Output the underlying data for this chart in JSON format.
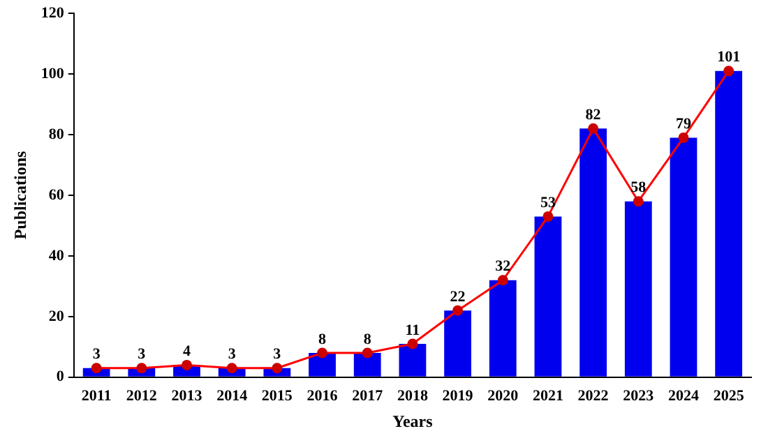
{
  "chart_data": {
    "type": "bar",
    "xlabel": "Years",
    "ylabel": "Publications",
    "categories": [
      "2011",
      "2012",
      "2013",
      "2014",
      "2015",
      "2016",
      "2017",
      "2018",
      "2019",
      "2020",
      "2021",
      "2022",
      "2023",
      "2024",
      "2025"
    ],
    "series": [
      {
        "color": "#0000ee",
        "values": [
          3,
          3,
          4,
          3,
          3,
          8,
          8,
          11,
          22,
          32,
          53,
          82,
          58,
          79,
          101
        ]
      },
      {
        "type": "line",
        "color": "#ff0000",
        "marker": "circle",
        "values": [
          3,
          3,
          4,
          3,
          3,
          8,
          8,
          11,
          22,
          32,
          53,
          82,
          58,
          79,
          101
        ],
        "value_labels": [
          "3",
          "3",
          "4",
          "3",
          "3",
          "8",
          "8",
          "11",
          "22",
          "32",
          "53",
          "82",
          "58",
          "79",
          "101"
        ]
      }
    ],
    "ylim": [
      0,
      120
    ],
    "yticks": [
      0,
      20,
      40,
      60,
      80,
      100,
      120
    ],
    "grid": false
  }
}
